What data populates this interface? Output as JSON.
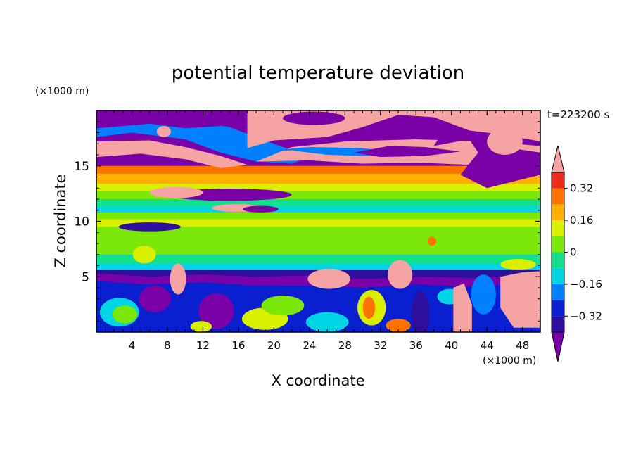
{
  "chart_data": {
    "type": "heatmap",
    "title": "potential temperature deviation",
    "xlabel": "X coordinate",
    "ylabel": "Z coordinate",
    "x_unit": "(×1000 m)",
    "y_unit": "(×1000 m)",
    "time_label": "t=223200 s",
    "xlim": [
      0,
      50
    ],
    "ylim": [
      0,
      20
    ],
    "x_ticks": [
      4,
      8,
      12,
      16,
      20,
      24,
      28,
      32,
      36,
      40,
      44,
      48
    ],
    "y_ticks": [
      5,
      10,
      15
    ],
    "colorbar": {
      "levels": [
        -0.4,
        -0.32,
        -0.24,
        -0.16,
        -0.08,
        0,
        0.08,
        0.16,
        0.24,
        0.32,
        0.4
      ],
      "tick_labels": [
        "0.32",
        "0.16",
        "0",
        "−0.16",
        "−0.32"
      ],
      "tick_values": [
        0.32,
        0.16,
        0,
        -0.16,
        -0.32
      ],
      "colors": [
        "#7a00a8",
        "#2e0e9c",
        "#0a1fd0",
        "#0080ff",
        "#00d5e6",
        "#12e08a",
        "#7be80a",
        "#d8f000",
        "#ffb000",
        "#ff7400",
        "#ee2a1d",
        "#f5a3a3"
      ],
      "extend": "both"
    },
    "regions_description_x_units": "kilometres",
    "regions_description_y_units": "kilometres"
  }
}
